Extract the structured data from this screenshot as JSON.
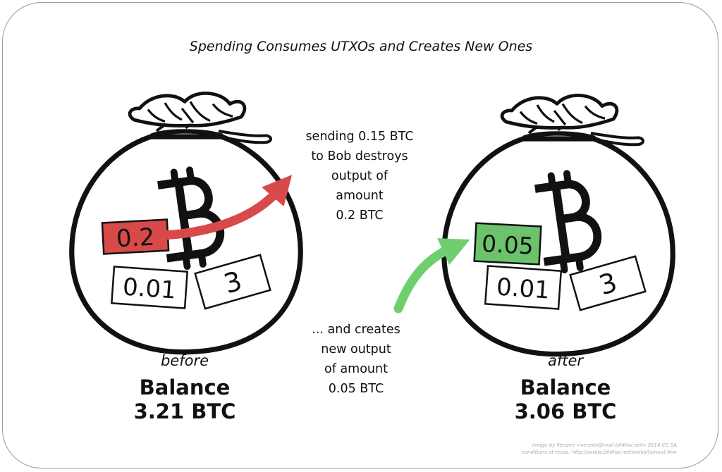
{
  "title": "Spending Consumes UTXOs and Creates New Ones",
  "colors": {
    "removed_output": "#d84a4a",
    "new_output": "#6cc36c",
    "destroy_arrow": "#d84a4a",
    "create_arrow": "#6fcf6f",
    "ink": "#111111"
  },
  "icons": {
    "bag": "money-bag-icon",
    "coin": "bitcoin-icon"
  },
  "before": {
    "label": "before",
    "balance_label": "Balance",
    "balance_value": "3.21 BTC",
    "outputs": [
      "0.2",
      "0.01",
      "3"
    ]
  },
  "after": {
    "label": "after",
    "balance_label": "Balance",
    "balance_value": "3.06 BTC",
    "outputs": [
      "0.05",
      "0.01",
      "3"
    ]
  },
  "annotations": {
    "destroy": [
      "sending 0.15 BTC",
      "to Bob destroys",
      "output of",
      "amount",
      "0.2 BTC"
    ],
    "create": [
      "... and creates",
      "new output",
      "of amount",
      "0.05 BTC"
    ]
  },
  "credit": [
    "image by Venzen <venzen@mail.bihthai.net> 2014 CC SA",
    "conditions of reuse: http://sofala.bihthai.net/works/txinout.htm"
  ]
}
